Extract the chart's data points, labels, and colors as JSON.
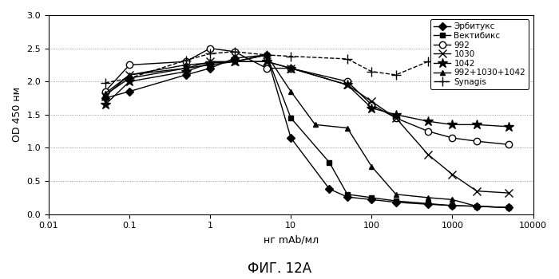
{
  "title": "ФИГ. 12А",
  "xlabel": "нг mAb/мл",
  "ylabel": "OD 450 нм",
  "xlim": [
    0.01,
    10000
  ],
  "ylim": [
    0,
    3
  ],
  "yticks": [
    0,
    0.5,
    1.0,
    1.5,
    2.0,
    2.5,
    3.0
  ],
  "xticks": [
    0.01,
    0.1,
    1,
    10,
    100,
    1000,
    10000
  ],
  "xtick_labels": [
    "0.01",
    "0.1",
    "1",
    "10",
    "100",
    "1000",
    "10000"
  ],
  "series": {
    "Эрбитукс": {
      "x": [
        0.05,
        0.1,
        0.5,
        1,
        2,
        5,
        10,
        30,
        50,
        100,
        200,
        500,
        1000,
        2000,
        5000
      ],
      "y": [
        1.75,
        1.85,
        2.1,
        2.2,
        2.35,
        2.4,
        1.15,
        0.38,
        0.26,
        0.22,
        0.18,
        0.15,
        0.13,
        0.12,
        0.1
      ],
      "marker": "o",
      "markersize": 5,
      "linestyle": "-",
      "color": "#000000",
      "fillstyle": "full",
      "markershape": "diamond"
    },
    "Вектибикс": {
      "x": [
        0.05,
        0.1,
        0.5,
        1,
        2,
        5,
        10,
        30,
        50,
        100,
        200,
        500,
        1000,
        2000,
        5000
      ],
      "y": [
        1.8,
        2.05,
        2.2,
        2.25,
        2.3,
        2.4,
        1.45,
        0.78,
        0.3,
        0.25,
        0.2,
        0.16,
        0.13,
        0.12,
        0.1
      ],
      "marker": "s",
      "markersize": 5,
      "linestyle": "-",
      "color": "#000000",
      "fillstyle": "full"
    },
    "992": {
      "x": [
        0.05,
        0.1,
        0.5,
        1,
        2,
        5,
        10,
        50,
        100,
        200,
        500,
        1000,
        2000,
        5000
      ],
      "y": [
        1.85,
        2.25,
        2.3,
        2.5,
        2.45,
        2.2,
        2.2,
        2.0,
        1.65,
        1.45,
        1.25,
        1.15,
        1.1,
        1.05
      ],
      "marker": "o",
      "markersize": 6,
      "linestyle": "-",
      "color": "#000000",
      "fillstyle": "none"
    },
    "1030": {
      "x": [
        0.05,
        0.1,
        0.5,
        1,
        2,
        5,
        10,
        50,
        100,
        200,
        500,
        1000,
        2000,
        5000
      ],
      "y": [
        1.78,
        2.1,
        2.2,
        2.3,
        2.3,
        2.3,
        2.2,
        1.95,
        1.7,
        1.45,
        0.9,
        0.6,
        0.35,
        0.32
      ],
      "marker": "x",
      "markersize": 7,
      "linestyle": "-",
      "color": "#000000",
      "fillstyle": "full"
    },
    "1042": {
      "x": [
        0.05,
        0.1,
        0.5,
        1,
        2,
        5,
        10,
        50,
        100,
        200,
        500,
        1000,
        2000,
        5000
      ],
      "y": [
        1.65,
        2.0,
        2.15,
        2.28,
        2.3,
        2.3,
        2.2,
        1.95,
        1.6,
        1.5,
        1.4,
        1.35,
        1.35,
        1.32
      ],
      "marker": "*",
      "markersize": 9,
      "linestyle": "-",
      "color": "#000000",
      "fillstyle": "full"
    },
    "992+1030+1042": {
      "x": [
        0.05,
        0.1,
        0.5,
        1,
        2,
        5,
        10,
        20,
        50,
        100,
        200,
        500,
        1000,
        2000,
        5000
      ],
      "y": [
        1.82,
        2.1,
        2.25,
        2.28,
        2.3,
        2.4,
        1.85,
        1.35,
        1.3,
        0.72,
        0.3,
        0.25,
        0.22,
        0.12,
        0.1
      ],
      "marker": "^",
      "markersize": 5,
      "linestyle": "-",
      "color": "#000000",
      "fillstyle": "full"
    },
    "Synagis": {
      "x": [
        0.05,
        0.1,
        0.5,
        1,
        2,
        5,
        10,
        50,
        100,
        200,
        500,
        1000,
        2000,
        5000
      ],
      "y": [
        1.98,
        2.05,
        2.32,
        2.42,
        2.45,
        2.4,
        2.38,
        2.34,
        2.15,
        2.1,
        2.3,
        2.25,
        2.2,
        2.3
      ],
      "marker": "+",
      "markersize": 8,
      "linestyle": "--",
      "color": "#000000",
      "fillstyle": "full"
    }
  },
  "legend_order": [
    "Эрбитукс",
    "Вектибикс",
    "992",
    "1030",
    "1042",
    "992+1030+1042",
    "Synagis"
  ]
}
